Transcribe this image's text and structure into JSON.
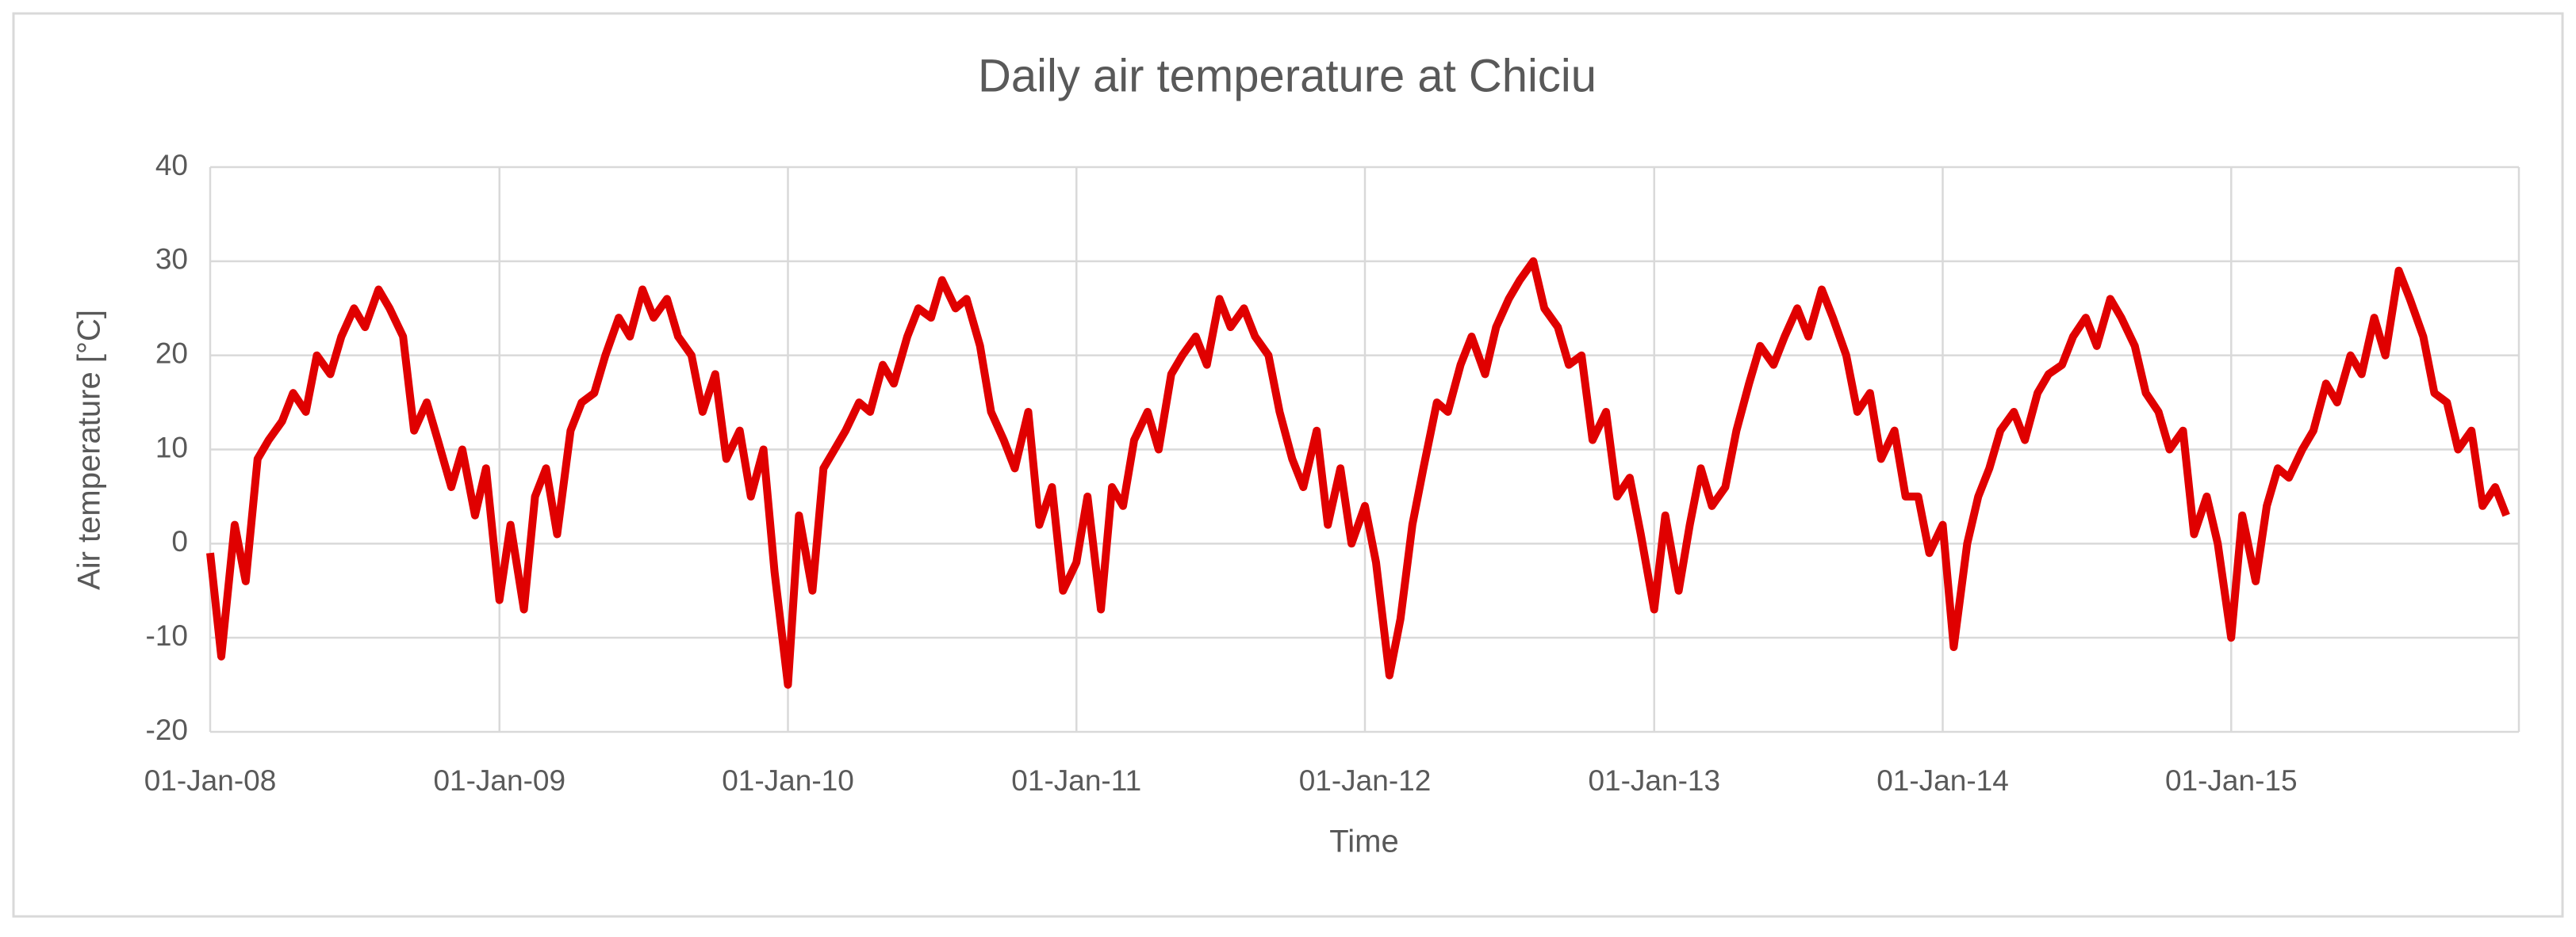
{
  "chart_data": {
    "type": "line",
    "title": "Daily air temperature at Chiciu",
    "xlabel": "Time",
    "ylabel": "Air temperature  [°C]",
    "x": [
      "2008-01-01",
      "2008-01-15",
      "2008-02-01",
      "2008-02-15",
      "2008-03-01",
      "2008-03-15",
      "2008-04-01",
      "2008-04-15",
      "2008-05-01",
      "2008-05-15",
      "2008-06-01",
      "2008-06-15",
      "2008-07-01",
      "2008-07-15",
      "2008-08-01",
      "2008-08-15",
      "2008-09-01",
      "2008-09-15",
      "2008-10-01",
      "2008-10-15",
      "2008-11-01",
      "2008-11-15",
      "2008-12-01",
      "2008-12-15",
      "2009-01-01",
      "2009-01-15",
      "2009-02-01",
      "2009-02-15",
      "2009-03-01",
      "2009-03-15",
      "2009-04-01",
      "2009-04-15",
      "2009-05-01",
      "2009-05-15",
      "2009-06-01",
      "2009-06-15",
      "2009-07-01",
      "2009-07-15",
      "2009-08-01",
      "2009-08-15",
      "2009-09-01",
      "2009-09-15",
      "2009-10-01",
      "2009-10-15",
      "2009-11-01",
      "2009-11-15",
      "2009-12-01",
      "2009-12-15",
      "2010-01-01",
      "2010-01-15",
      "2010-02-01",
      "2010-02-15",
      "2010-03-01",
      "2010-03-15",
      "2010-04-01",
      "2010-04-15",
      "2010-05-01",
      "2010-05-15",
      "2010-06-01",
      "2010-06-15",
      "2010-07-01",
      "2010-07-15",
      "2010-08-01",
      "2010-08-15",
      "2010-09-01",
      "2010-09-15",
      "2010-10-01",
      "2010-10-15",
      "2010-11-01",
      "2010-11-15",
      "2010-12-01",
      "2010-12-15",
      "2011-01-01",
      "2011-01-15",
      "2011-02-01",
      "2011-02-15",
      "2011-03-01",
      "2011-03-15",
      "2011-04-01",
      "2011-04-15",
      "2011-05-01",
      "2011-05-15",
      "2011-06-01",
      "2011-06-15",
      "2011-07-01",
      "2011-07-15",
      "2011-08-01",
      "2011-08-15",
      "2011-09-01",
      "2011-09-15",
      "2011-10-01",
      "2011-10-15",
      "2011-11-01",
      "2011-11-15",
      "2011-12-01",
      "2011-12-15",
      "2012-01-01",
      "2012-01-15",
      "2012-02-01",
      "2012-02-15",
      "2012-03-01",
      "2012-03-15",
      "2012-04-01",
      "2012-04-15",
      "2012-05-01",
      "2012-05-15",
      "2012-06-01",
      "2012-06-15",
      "2012-07-01",
      "2012-07-15",
      "2012-08-01",
      "2012-08-15",
      "2012-09-01",
      "2012-09-15",
      "2012-10-01",
      "2012-10-15",
      "2012-11-01",
      "2012-11-15",
      "2012-12-01",
      "2012-12-15",
      "2013-01-01",
      "2013-01-15",
      "2013-02-01",
      "2013-02-15",
      "2013-03-01",
      "2013-03-15",
      "2013-04-01",
      "2013-04-15",
      "2013-05-01",
      "2013-05-15",
      "2013-06-01",
      "2013-06-15",
      "2013-07-01",
      "2013-07-15",
      "2013-08-01",
      "2013-08-15",
      "2013-09-01",
      "2013-09-15",
      "2013-10-01",
      "2013-10-15",
      "2013-11-01",
      "2013-11-15",
      "2013-12-01",
      "2013-12-15",
      "2014-01-01",
      "2014-01-15",
      "2014-02-01",
      "2014-02-15",
      "2014-03-01",
      "2014-03-15",
      "2014-04-01",
      "2014-04-15",
      "2014-05-01",
      "2014-05-15",
      "2014-06-01",
      "2014-06-15",
      "2014-07-01",
      "2014-07-15",
      "2014-08-01",
      "2014-08-15",
      "2014-09-01",
      "2014-09-15",
      "2014-10-01",
      "2014-10-15",
      "2014-11-01",
      "2014-11-15",
      "2014-12-01",
      "2014-12-15",
      "2015-01-01",
      "2015-01-15",
      "2015-02-01",
      "2015-02-15",
      "2015-03-01",
      "2015-03-15",
      "2015-04-01",
      "2015-04-15",
      "2015-05-01",
      "2015-05-15",
      "2015-06-01",
      "2015-06-15",
      "2015-07-01",
      "2015-07-15",
      "2015-08-01",
      "2015-08-15",
      "2015-09-01",
      "2015-09-15",
      "2015-10-01",
      "2015-10-15",
      "2015-11-01",
      "2015-11-15",
      "2015-12-01",
      "2015-12-15"
    ],
    "series": [
      {
        "name": "Air temperature",
        "color": "#e00000",
        "values": [
          -1,
          -12,
          2,
          -4,
          9,
          11,
          13,
          16,
          14,
          20,
          18,
          22,
          25,
          23,
          27,
          25,
          22,
          12,
          15,
          11,
          6,
          10,
          3,
          8,
          -6,
          2,
          -7,
          5,
          8,
          1,
          12,
          15,
          16,
          20,
          24,
          22,
          27,
          24,
          26,
          22,
          20,
          14,
          18,
          9,
          12,
          5,
          10,
          -3,
          -15,
          3,
          -5,
          8,
          10,
          12,
          15,
          14,
          19,
          17,
          22,
          25,
          24,
          28,
          25,
          26,
          21,
          14,
          11,
          8,
          14,
          2,
          6,
          -5,
          -2,
          5,
          -7,
          6,
          4,
          11,
          14,
          10,
          18,
          20,
          22,
          19,
          26,
          23,
          25,
          22,
          20,
          14,
          9,
          6,
          12,
          2,
          8,
          0,
          4,
          -2,
          -14,
          -8,
          2,
          8,
          15,
          14,
          19,
          22,
          18,
          23,
          26,
          28,
          30,
          25,
          23,
          19,
          20,
          11,
          14,
          5,
          7,
          1,
          -7,
          3,
          -5,
          2,
          8,
          4,
          6,
          12,
          17,
          21,
          19,
          22,
          25,
          22,
          27,
          24,
          20,
          14,
          16,
          9,
          12,
          5,
          5,
          -1,
          2,
          -11,
          0,
          5,
          8,
          12,
          14,
          11,
          16,
          18,
          19,
          22,
          24,
          21,
          26,
          24,
          21,
          16,
          14,
          10,
          12,
          1,
          5,
          0,
          -10,
          3,
          -4,
          4,
          8,
          7,
          10,
          12,
          17,
          15,
          20,
          18,
          24,
          20,
          29,
          26,
          22,
          16,
          15,
          10,
          12,
          4,
          6,
          3
        ]
      }
    ],
    "xlim": [
      "2008-01-01",
      "2015-12-31"
    ],
    "xticks": [
      {
        "value": "2008-01-01",
        "label": "01-Jan-08"
      },
      {
        "value": "2009-01-01",
        "label": "01-Jan-09"
      },
      {
        "value": "2010-01-01",
        "label": "01-Jan-10"
      },
      {
        "value": "2011-01-01",
        "label": "01-Jan-11"
      },
      {
        "value": "2012-01-01",
        "label": "01-Jan-12"
      },
      {
        "value": "2013-01-01",
        "label": "01-Jan-13"
      },
      {
        "value": "2014-01-01",
        "label": "01-Jan-14"
      },
      {
        "value": "2015-01-01",
        "label": "01-Jan-15"
      }
    ],
    "ylim": [
      -20,
      40
    ],
    "yticks": [
      -20,
      -10,
      0,
      10,
      20,
      30,
      40
    ],
    "grid": true
  }
}
